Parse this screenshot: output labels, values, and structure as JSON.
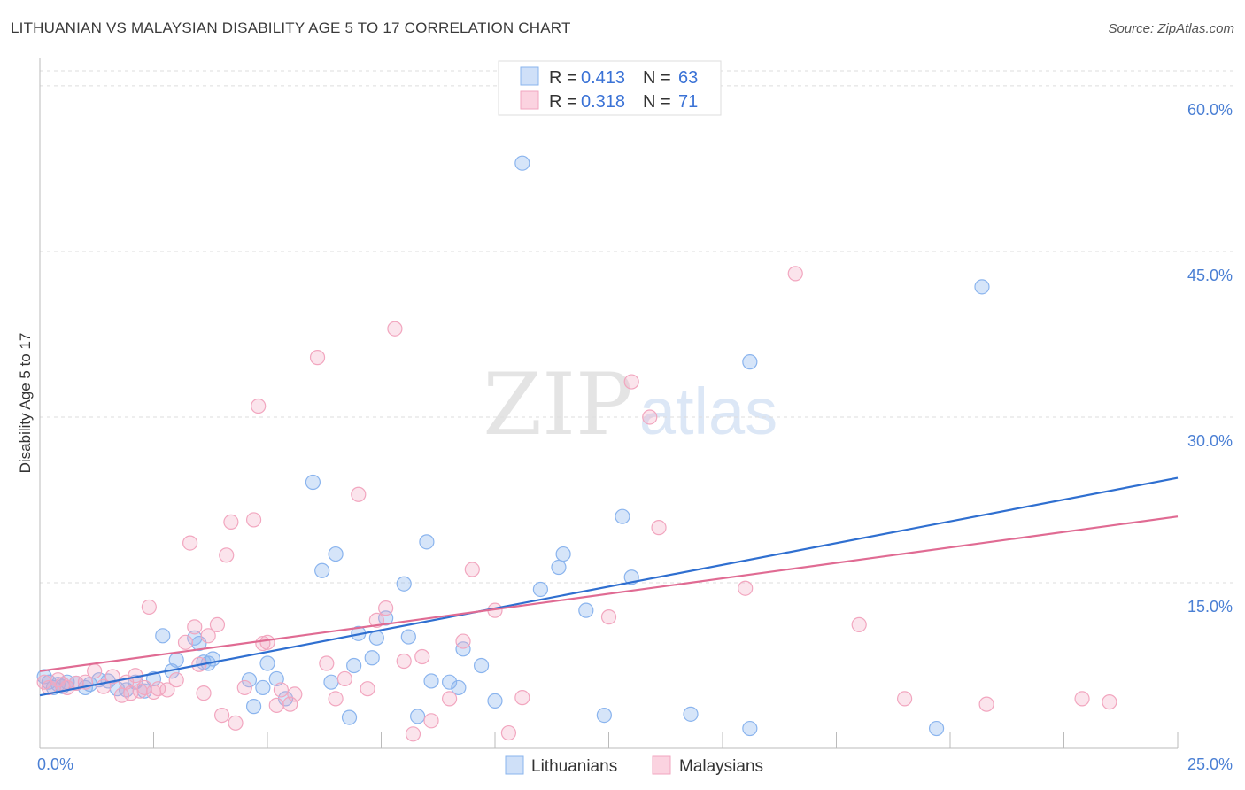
{
  "header": {
    "title": "LITHUANIAN VS MALAYSIAN DISABILITY AGE 5 TO 17 CORRELATION CHART",
    "source": "Source: ZipAtlas.com"
  },
  "watermark": {
    "zip": "ZIP",
    "atlas": "atlas"
  },
  "chart_data": {
    "type": "scatter",
    "ylabel": "Disability Age 5 to 17",
    "xlim": [
      0,
      25
    ],
    "ylim": [
      0,
      62
    ],
    "x_tick_labels": [
      "0.0%",
      "25.0%"
    ],
    "y_ticks": [
      15,
      30,
      45,
      60
    ],
    "y_tick_labels": [
      "15.0%",
      "30.0%",
      "45.0%",
      "60.0%"
    ],
    "grid": "horizontal-dashed",
    "legend_placement": "top-center",
    "stats_legend": [
      {
        "r_label": "R =",
        "r_value": "0.413",
        "n_label": "N =",
        "n_value": "63"
      },
      {
        "r_label": "R =",
        "r_value": "0.318",
        "n_label": "N =",
        "n_value": "71"
      }
    ],
    "series": [
      {
        "name": "Lithuanians",
        "color": "#8ab4ee",
        "line_color": "#2f6fd0",
        "trend": [
          [
            0,
            4.8
          ],
          [
            25,
            24.5
          ]
        ],
        "points": [
          [
            0.1,
            6.5
          ],
          [
            0.2,
            6.0
          ],
          [
            0.3,
            5.5
          ],
          [
            0.4,
            5.8
          ],
          [
            0.5,
            5.6
          ],
          [
            0.6,
            6.0
          ],
          [
            0.8,
            5.9
          ],
          [
            1.0,
            5.5
          ],
          [
            1.1,
            5.8
          ],
          [
            1.3,
            6.2
          ],
          [
            1.5,
            6.1
          ],
          [
            1.7,
            5.4
          ],
          [
            1.9,
            5.3
          ],
          [
            2.1,
            6.0
          ],
          [
            2.3,
            5.2
          ],
          [
            2.5,
            6.3
          ],
          [
            2.7,
            10.2
          ],
          [
            2.9,
            7.0
          ],
          [
            3.0,
            8.0
          ],
          [
            3.4,
            10.0
          ],
          [
            3.5,
            9.5
          ],
          [
            3.6,
            7.8
          ],
          [
            3.7,
            7.7
          ],
          [
            3.8,
            8.1
          ],
          [
            4.6,
            6.2
          ],
          [
            4.7,
            3.8
          ],
          [
            4.9,
            5.5
          ],
          [
            5.0,
            7.7
          ],
          [
            5.2,
            6.3
          ],
          [
            5.4,
            4.5
          ],
          [
            6.0,
            24.1
          ],
          [
            6.2,
            16.1
          ],
          [
            6.4,
            6.0
          ],
          [
            6.5,
            17.6
          ],
          [
            6.8,
            2.8
          ],
          [
            6.9,
            7.5
          ],
          [
            7.0,
            10.4
          ],
          [
            7.3,
            8.2
          ],
          [
            7.4,
            10.0
          ],
          [
            7.6,
            11.8
          ],
          [
            8.0,
            14.9
          ],
          [
            8.1,
            10.1
          ],
          [
            8.3,
            2.9
          ],
          [
            8.5,
            18.7
          ],
          [
            8.6,
            6.1
          ],
          [
            9.0,
            6.0
          ],
          [
            9.2,
            5.5
          ],
          [
            9.3,
            9.0
          ],
          [
            9.7,
            7.5
          ],
          [
            10.0,
            4.3
          ],
          [
            10.6,
            53.0
          ],
          [
            11.0,
            14.4
          ],
          [
            11.4,
            16.4
          ],
          [
            11.5,
            17.6
          ],
          [
            12.0,
            12.5
          ],
          [
            12.4,
            3.0
          ],
          [
            12.8,
            21.0
          ],
          [
            13.0,
            15.5
          ],
          [
            14.3,
            3.1
          ],
          [
            15.6,
            35.0
          ],
          [
            15.6,
            1.8
          ],
          [
            19.7,
            1.8
          ],
          [
            20.7,
            41.8
          ]
        ]
      },
      {
        "name": "Malaysians",
        "color": "#f2a6bf",
        "line_color": "#e06b93",
        "trend": [
          [
            0,
            7.0
          ],
          [
            25,
            21.0
          ]
        ],
        "points": [
          [
            0.1,
            6.0
          ],
          [
            0.2,
            5.5
          ],
          [
            0.4,
            6.2
          ],
          [
            0.5,
            5.8
          ],
          [
            0.6,
            5.5
          ],
          [
            0.8,
            5.9
          ],
          [
            1.0,
            6.0
          ],
          [
            1.2,
            7.0
          ],
          [
            1.4,
            5.6
          ],
          [
            1.6,
            6.5
          ],
          [
            1.8,
            4.8
          ],
          [
            1.9,
            6.0
          ],
          [
            2.0,
            5.0
          ],
          [
            2.1,
            6.6
          ],
          [
            2.2,
            5.2
          ],
          [
            2.3,
            5.5
          ],
          [
            2.4,
            12.8
          ],
          [
            2.5,
            5.1
          ],
          [
            2.6,
            5.4
          ],
          [
            2.8,
            5.3
          ],
          [
            3.0,
            6.2
          ],
          [
            3.2,
            9.6
          ],
          [
            3.3,
            18.6
          ],
          [
            3.4,
            11.0
          ],
          [
            3.5,
            7.6
          ],
          [
            3.6,
            5.0
          ],
          [
            3.7,
            10.2
          ],
          [
            3.9,
            11.2
          ],
          [
            4.0,
            3.0
          ],
          [
            4.1,
            17.5
          ],
          [
            4.2,
            20.5
          ],
          [
            4.3,
            2.3
          ],
          [
            4.5,
            5.5
          ],
          [
            4.7,
            20.7
          ],
          [
            4.8,
            31.0
          ],
          [
            4.9,
            9.5
          ],
          [
            5.0,
            9.6
          ],
          [
            5.2,
            3.9
          ],
          [
            5.3,
            5.3
          ],
          [
            5.5,
            4.0
          ],
          [
            5.6,
            4.9
          ],
          [
            6.1,
            35.4
          ],
          [
            6.3,
            7.7
          ],
          [
            6.5,
            4.5
          ],
          [
            6.7,
            6.3
          ],
          [
            7.0,
            23.0
          ],
          [
            7.2,
            5.4
          ],
          [
            7.4,
            11.6
          ],
          [
            7.6,
            12.7
          ],
          [
            7.8,
            38.0
          ],
          [
            8.0,
            7.9
          ],
          [
            8.2,
            1.3
          ],
          [
            8.4,
            8.3
          ],
          [
            8.6,
            2.5
          ],
          [
            9.0,
            4.5
          ],
          [
            9.3,
            9.7
          ],
          [
            9.5,
            16.2
          ],
          [
            10.0,
            12.5
          ],
          [
            10.3,
            1.4
          ],
          [
            10.6,
            4.6
          ],
          [
            12.5,
            11.9
          ],
          [
            13.0,
            33.2
          ],
          [
            13.4,
            30.0
          ],
          [
            13.6,
            20.0
          ],
          [
            15.5,
            14.5
          ],
          [
            16.6,
            43.0
          ],
          [
            18.0,
            11.2
          ],
          [
            19.0,
            4.5
          ],
          [
            20.8,
            4.0
          ],
          [
            22.9,
            4.5
          ],
          [
            23.5,
            4.2
          ]
        ]
      }
    ]
  }
}
